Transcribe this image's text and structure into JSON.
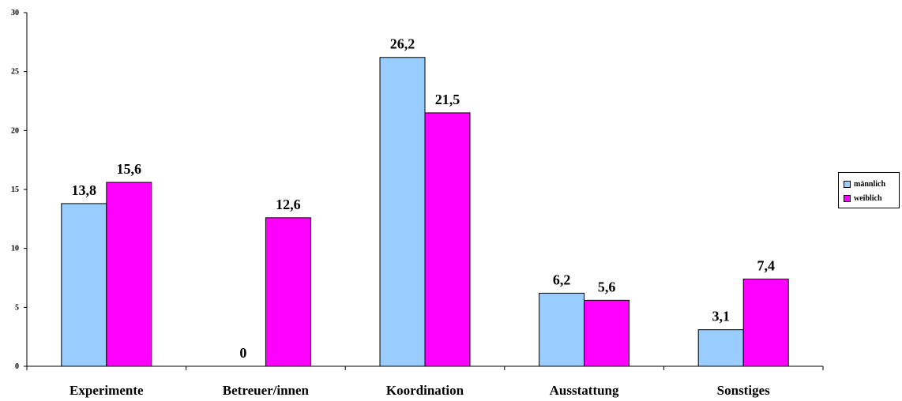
{
  "chart_data": {
    "type": "bar",
    "categories": [
      "Experimente",
      "Betreuer/innen",
      "Koordination",
      "Ausstattung",
      "Sonstiges"
    ],
    "series": [
      {
        "name": "männlich",
        "values": [
          13.8,
          0,
          26.2,
          6.2,
          3.1
        ],
        "labels": [
          "13,8",
          "0",
          "26,2",
          "6,2",
          "3,1"
        ],
        "color": "#99ccff"
      },
      {
        "name": "weiblich",
        "values": [
          15.6,
          12.6,
          21.5,
          5.6,
          7.4
        ],
        "labels": [
          "15,6",
          "12,6",
          "21,5",
          "5,6",
          "7,4"
        ],
        "color": "#ff00ff"
      }
    ],
    "yticks": [
      "0",
      "5",
      "10",
      "15",
      "20",
      "25",
      "30"
    ],
    "ylim": [
      0,
      30
    ],
    "legend_position": "right",
    "grid": false
  }
}
